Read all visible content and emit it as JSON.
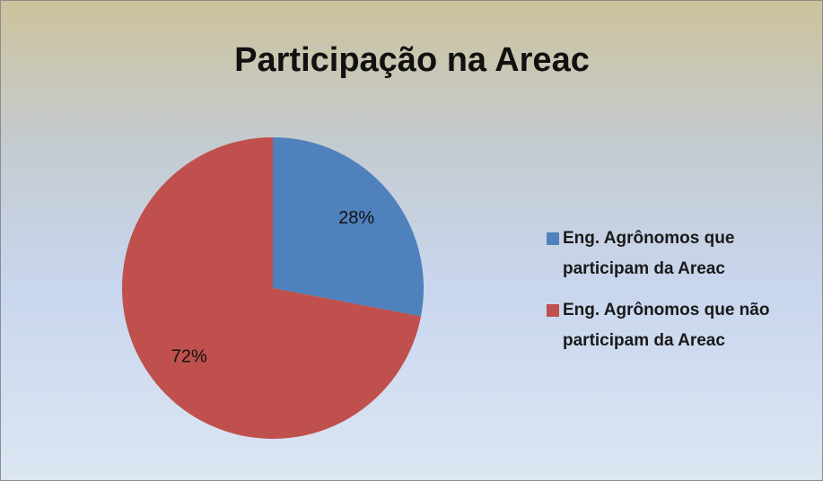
{
  "chart_data": {
    "type": "pie",
    "title": "Participação na Areac",
    "categories": [
      "Eng. Agrônomos que participam da Areac",
      "Eng. Agrônomos que não participam da Areac"
    ],
    "values": [
      28,
      72
    ],
    "value_labels": [
      "28%",
      "72%"
    ],
    "colors": [
      "#4f81bd",
      "#c0504d"
    ],
    "legend": "right"
  }
}
